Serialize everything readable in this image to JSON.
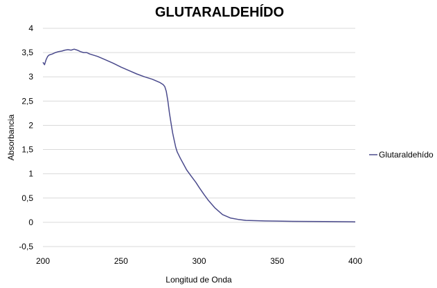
{
  "chart_data": {
    "type": "line",
    "title": "GLUTARALDEHÍDO",
    "xlabel": "Longitud de Onda",
    "ylabel": "Absorbancia",
    "xlim": [
      200,
      400
    ],
    "ylim": [
      -0.5,
      4
    ],
    "x_ticks": [
      200,
      250,
      300,
      350,
      400
    ],
    "x_tick_labels": [
      "200",
      "250",
      "300",
      "350",
      "400"
    ],
    "y_ticks": [
      -0.5,
      0,
      0.5,
      1,
      1.5,
      2,
      2.5,
      3,
      3.5,
      4
    ],
    "y_tick_labels": [
      "-0,5",
      "0",
      "0,5",
      "1",
      "1,5",
      "2",
      "2,5",
      "3",
      "3,5",
      "4"
    ],
    "grid": true,
    "legend_position": "right",
    "series": [
      {
        "name": "Glutaraldehído",
        "color": "#4a4a8c",
        "x": [
          200,
          201,
          202,
          203,
          204,
          206,
          208,
          210,
          212,
          214,
          216,
          218,
          220,
          222,
          224,
          226,
          228,
          230,
          235,
          240,
          245,
          250,
          255,
          260,
          265,
          270,
          275,
          277,
          278,
          279,
          280,
          281,
          282,
          283,
          284,
          285,
          286,
          288,
          290,
          292,
          295,
          298,
          300,
          303,
          306,
          310,
          315,
          320,
          325,
          330,
          340,
          350,
          360,
          380,
          400
        ],
        "y": [
          3.3,
          3.25,
          3.35,
          3.42,
          3.45,
          3.47,
          3.5,
          3.52,
          3.53,
          3.55,
          3.56,
          3.55,
          3.57,
          3.55,
          3.52,
          3.5,
          3.5,
          3.47,
          3.42,
          3.35,
          3.28,
          3.2,
          3.13,
          3.06,
          3.0,
          2.95,
          2.88,
          2.84,
          2.8,
          2.7,
          2.5,
          2.25,
          2.05,
          1.85,
          1.7,
          1.55,
          1.45,
          1.32,
          1.2,
          1.08,
          0.95,
          0.82,
          0.72,
          0.58,
          0.45,
          0.3,
          0.16,
          0.09,
          0.06,
          0.04,
          0.03,
          0.025,
          0.02,
          0.015,
          0.01
        ]
      }
    ]
  }
}
